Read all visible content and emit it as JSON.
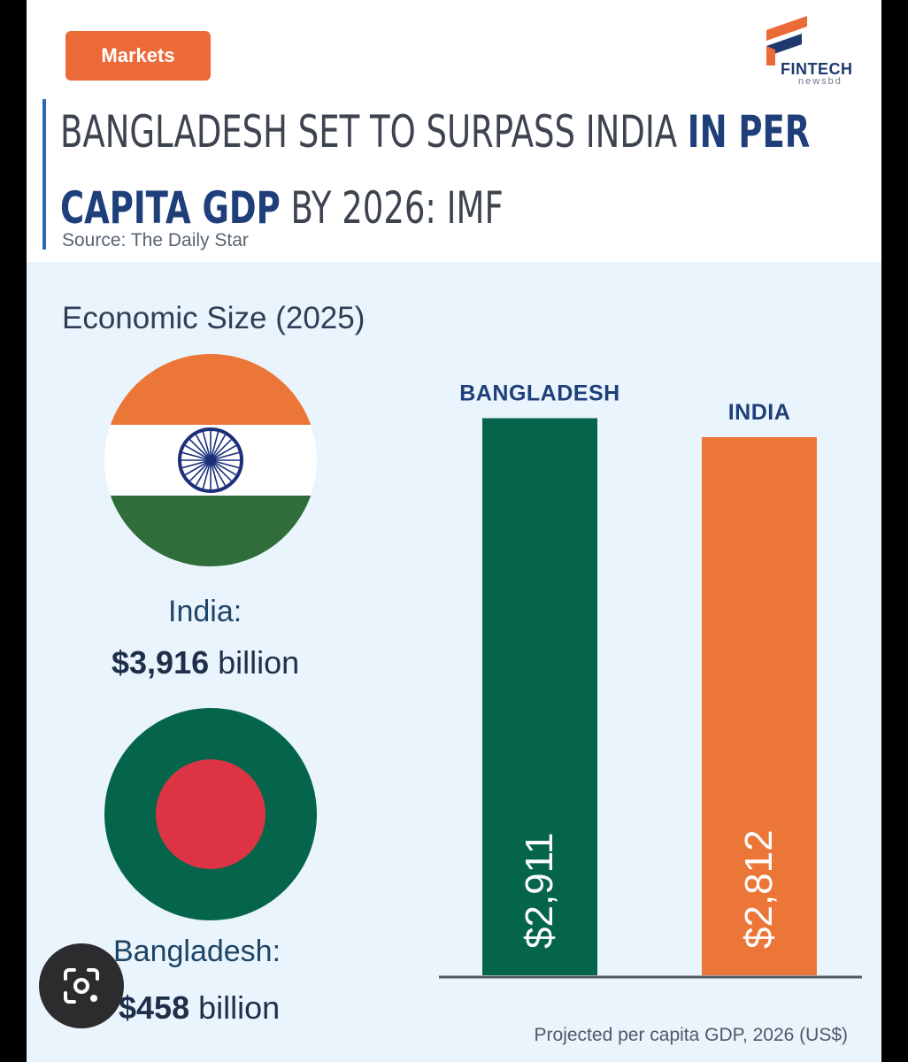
{
  "badge": "Markets",
  "logo": {
    "name": "FINTECH",
    "sub": "newsbd"
  },
  "title": {
    "line1_normal": "BANGLADESH SET TO SURPASS INDIA ",
    "line1_bold": "IN PER",
    "line2_bold": "CAPITA GDP",
    "line2_normal": " BY 2026: IMF"
  },
  "source": "Source: The Daily Star",
  "economic_size": {
    "heading": "Economic Size (2025)",
    "india": {
      "label": "India:",
      "value": "$3,916",
      "unit": "billion"
    },
    "bangladesh": {
      "label": "Bangladesh:",
      "value": "$458",
      "unit": "billion"
    }
  },
  "colors": {
    "bangladesh_green": "#05654a",
    "india_orange": "#ec7637",
    "badge": "#ec6a37",
    "title_highlight": "#1f3f7a",
    "panel_bg": "#eaf4fc"
  },
  "icons": {
    "logo": "fintech-logo-icon",
    "lens": "google-lens-icon",
    "chakra": "ashoka-chakra-icon"
  },
  "chart_data": {
    "type": "bar",
    "categories": [
      "BANGLADESH",
      "INDIA"
    ],
    "values": [
      2911,
      2812
    ],
    "value_labels": [
      "$2,911",
      "$2,812"
    ],
    "colors": [
      "#05654a",
      "#ec7637"
    ],
    "xlabel": "Projected per capita GDP, 2026 (US$)",
    "ylabel": "",
    "ylim": [
      0,
      3450
    ],
    "grid": false
  }
}
